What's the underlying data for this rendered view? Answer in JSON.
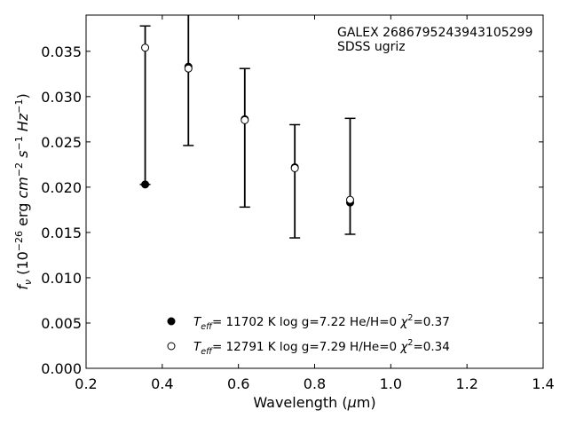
{
  "chart_data": {
    "type": "scatter",
    "xlabel": "Wavelength (μm)",
    "ylabel": "f_ν (10^-26 erg cm^-2 s^-1 Hz^-1)",
    "xlim": [
      0.2,
      1.4
    ],
    "ylim": [
      0.0,
      0.039
    ],
    "x_ticks": [
      0.2,
      0.4,
      0.6,
      0.8,
      1.0,
      1.2,
      1.4
    ],
    "x_tick_labels": [
      "0.2",
      "0.4",
      "0.6",
      "0.8",
      "1.0",
      "1.2",
      "1.4"
    ],
    "y_ticks": [
      0.0,
      0.005,
      0.01,
      0.015,
      0.02,
      0.025,
      0.03,
      0.035
    ],
    "y_tick_labels": [
      "0.000",
      "0.005",
      "0.010",
      "0.015",
      "0.020",
      "0.025",
      "0.030",
      "0.035"
    ],
    "grid": false,
    "annotations": [
      "GALEX 2686795243943105299",
      "SDSS ugriz"
    ],
    "observed": {
      "x": [
        0.3551,
        0.4686,
        0.6166,
        0.748,
        0.8932
      ],
      "yerr_low": [
        0.0203,
        0.0246,
        0.0178,
        0.0144,
        0.0148
      ],
      "yerr_high": [
        0.0378,
        0.042,
        0.0331,
        0.0269,
        0.0276
      ]
    },
    "series": [
      {
        "marker": "filled-circle",
        "teff": "11702",
        "logg": "7.22",
        "comp": "He/H=0",
        "chi2": "0.37",
        "x": [
          0.3551,
          0.4686,
          0.6166,
          0.748,
          0.8932
        ],
        "y": [
          0.0203,
          0.0333,
          0.0275,
          0.0222,
          0.0183
        ]
      },
      {
        "marker": "open-circle",
        "teff": "12791",
        "logg": "7.29",
        "comp": "H/He=0",
        "chi2": "0.34",
        "x": [
          0.3551,
          0.4686,
          0.6166,
          0.748,
          0.8932
        ],
        "y": [
          0.0354,
          0.0331,
          0.0274,
          0.0221,
          0.0186
        ]
      }
    ],
    "legend_position": "lower-center"
  }
}
